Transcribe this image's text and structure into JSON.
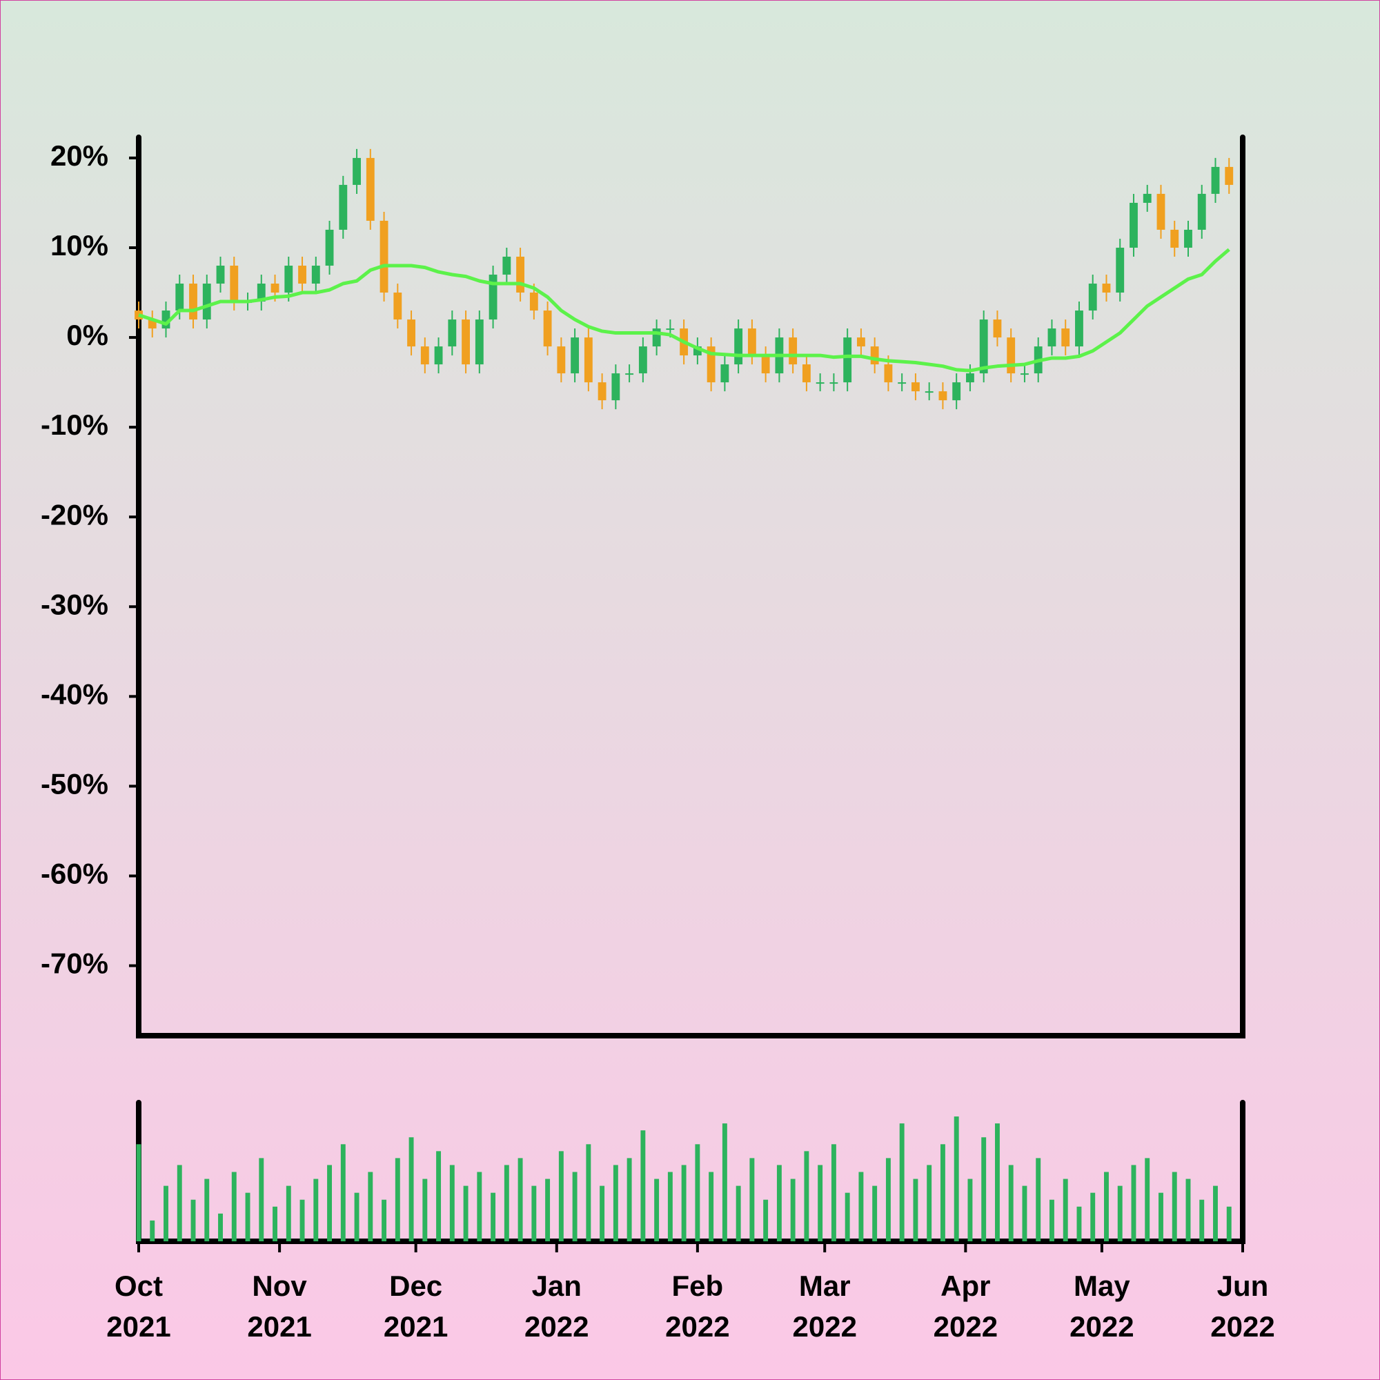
{
  "chart_data": [
    {
      "type": "candlestick",
      "x": [
        0,
        3,
        6,
        9,
        12,
        15,
        18,
        21,
        24,
        27,
        30,
        33,
        36,
        39,
        42,
        45,
        48,
        51,
        54,
        57,
        60,
        63,
        66,
        69,
        72,
        75,
        78,
        81,
        84,
        87,
        90,
        93,
        96,
        99,
        102,
        105,
        108,
        111,
        114,
        117,
        120,
        123,
        126,
        129,
        132,
        135,
        138,
        141,
        144,
        147,
        150,
        153,
        156,
        159,
        162,
        165,
        168,
        171,
        174,
        177,
        180,
        183,
        186,
        189,
        192,
        195,
        198,
        201,
        204,
        207,
        210,
        213,
        216,
        219,
        222,
        225,
        228,
        231,
        234,
        237,
        240
      ],
      "open": [
        3,
        2,
        1,
        3,
        6,
        2,
        6,
        8,
        4,
        4,
        6,
        5,
        8,
        6,
        8,
        12,
        17,
        20,
        13,
        5,
        2,
        -1,
        -3,
        -1,
        2,
        -3,
        2,
        7,
        9,
        5,
        3,
        -1,
        -4,
        0,
        -5,
        -7,
        -4,
        -4,
        -1,
        1,
        1,
        -2,
        -1,
        -5,
        -3,
        1,
        -2,
        -4,
        0,
        -3,
        -5,
        -5,
        -5,
        0,
        -1,
        -3,
        -5,
        -5,
        -6,
        -6,
        -7,
        -5,
        -4,
        2,
        0,
        -4,
        -4,
        -1,
        1,
        -1,
        3,
        6,
        5,
        10,
        15,
        16,
        12,
        10,
        12,
        16,
        19
      ],
      "high": [
        4,
        3,
        4,
        7,
        7,
        7,
        9,
        9,
        5,
        7,
        7,
        9,
        9,
        9,
        13,
        18,
        21,
        21,
        14,
        6,
        3,
        0,
        0,
        3,
        3,
        3,
        8,
        10,
        10,
        6,
        4,
        0,
        1,
        1,
        -4,
        -3,
        -3,
        0,
        2,
        2,
        2,
        0,
        0,
        -2,
        2,
        2,
        -1,
        1,
        1,
        -2,
        -4,
        -4,
        1,
        1,
        0,
        -2,
        -4,
        -4,
        -5,
        -5,
        -4,
        -3,
        3,
        3,
        1,
        -3,
        0,
        2,
        2,
        4,
        7,
        7,
        11,
        16,
        17,
        17,
        13,
        13,
        17,
        20,
        20
      ],
      "low": [
        1,
        0,
        0,
        2,
        1,
        1,
        5,
        3,
        3,
        3,
        4,
        4,
        5,
        5,
        7,
        11,
        16,
        12,
        4,
        1,
        -2,
        -4,
        -4,
        -2,
        -4,
        -4,
        1,
        6,
        4,
        2,
        -2,
        -5,
        -5,
        -6,
        -8,
        -8,
        -5,
        -5,
        -2,
        0,
        -3,
        -3,
        -6,
        -6,
        -4,
        -3,
        -5,
        -5,
        -4,
        -6,
        -6,
        -6,
        -6,
        -2,
        -4,
        -6,
        -6,
        -7,
        -7,
        -8,
        -8,
        -6,
        -5,
        -1,
        -5,
        -5,
        -5,
        -2,
        -2,
        -2,
        2,
        4,
        4,
        9,
        14,
        11,
        9,
        9,
        11,
        15,
        16
      ],
      "close": [
        2,
        1,
        3,
        6,
        2,
        6,
        8,
        4,
        4,
        6,
        5,
        8,
        6,
        8,
        12,
        17,
        20,
        13,
        5,
        2,
        -1,
        -3,
        -1,
        2,
        -3,
        2,
        7,
        9,
        5,
        3,
        -1,
        -4,
        0,
        -5,
        -7,
        -4,
        -4,
        -1,
        1,
        1,
        -2,
        -1,
        -5,
        -3,
        1,
        -2,
        -4,
        0,
        -3,
        -5,
        -5,
        -5,
        0,
        -1,
        -3,
        -5,
        -5,
        -6,
        -6,
        -7,
        -5,
        -4,
        2,
        0,
        -4,
        -4,
        -1,
        1,
        -1,
        3,
        6,
        5,
        10,
        15,
        16,
        12,
        10,
        12,
        16,
        19,
        17
      ],
      "up_color": "#2db35d",
      "down_color": "#f0a020",
      "series": [
        {
          "color": "#5cf24a",
          "values": [
            2.5,
            2,
            1.5,
            3,
            3,
            3.5,
            4,
            4,
            4,
            4.2,
            4.5,
            4.6,
            5,
            5,
            5.3,
            6,
            6.3,
            7.5,
            8,
            8,
            8,
            7.8,
            7.3,
            7,
            6.8,
            6.3,
            6,
            6,
            6,
            5.5,
            4.5,
            3,
            2,
            1.2,
            0.7,
            0.5,
            0.5,
            0.5,
            0.5,
            0.3,
            -0.5,
            -1.2,
            -1.8,
            -1.9,
            -2,
            -2,
            -2,
            -2,
            -2,
            -2,
            -2,
            -2.2,
            -2.1,
            -2.1,
            -2.4,
            -2.6,
            -2.7,
            -2.8,
            -3,
            -3.2,
            -3.6,
            -3.7,
            -3.4,
            -3.2,
            -3.1,
            -3,
            -2.6,
            -2.3,
            -2.3,
            -2.1,
            -1.5,
            -0.5,
            0.5,
            2,
            3.5,
            4.5,
            5.5,
            6.5,
            7,
            8.5,
            9.8
          ]
        }
      ],
      "xlim": [
        0,
        243
      ],
      "ylim": [
        -77.8,
        22.3
      ],
      "yticks": [
        {
          "value": 20,
          "label": "20%"
        },
        {
          "value": 10,
          "label": "10%"
        },
        {
          "value": 0,
          "label": "0%"
        },
        {
          "value": -10,
          "label": "-10%"
        },
        {
          "value": -20,
          "label": "-20%"
        },
        {
          "value": -30,
          "label": "-30%"
        },
        {
          "value": -40,
          "label": "-40%"
        },
        {
          "value": -50,
          "label": "-50%"
        },
        {
          "value": -60,
          "label": "-60%"
        },
        {
          "value": -70,
          "label": "-70%"
        }
      ]
    },
    {
      "type": "bar",
      "x": [
        0,
        3,
        6,
        9,
        12,
        15,
        18,
        21,
        24,
        27,
        30,
        33,
        36,
        39,
        42,
        45,
        48,
        51,
        54,
        57,
        60,
        63,
        66,
        69,
        72,
        75,
        78,
        81,
        84,
        87,
        90,
        93,
        96,
        99,
        102,
        105,
        108,
        111,
        114,
        117,
        120,
        123,
        126,
        129,
        132,
        135,
        138,
        141,
        144,
        147,
        150,
        153,
        156,
        159,
        162,
        165,
        168,
        171,
        174,
        177,
        180,
        183,
        186,
        189,
        192,
        195,
        198,
        201,
        204,
        207,
        210,
        213,
        216,
        219,
        222,
        225,
        228,
        231,
        234,
        237,
        240
      ],
      "values": [
        70,
        15,
        40,
        55,
        30,
        45,
        20,
        50,
        35,
        60,
        25,
        40,
        30,
        45,
        55,
        70,
        35,
        50,
        30,
        60,
        75,
        45,
        65,
        55,
        40,
        50,
        35,
        55,
        60,
        40,
        45,
        65,
        50,
        70,
        40,
        55,
        60,
        80,
        45,
        50,
        55,
        70,
        50,
        85,
        40,
        60,
        30,
        55,
        45,
        65,
        55,
        70,
        35,
        50,
        40,
        60,
        85,
        45,
        55,
        70,
        90,
        45,
        75,
        85,
        55,
        40,
        60,
        30,
        45,
        25,
        35,
        50,
        40,
        55,
        60,
        35,
        50,
        45,
        30,
        40,
        25
      ],
      "color": "#2db35d",
      "xlim": [
        0,
        243
      ],
      "ylim": [
        0,
        100
      ],
      "xticks": [
        {
          "value": 0,
          "label": "Oct 2021"
        },
        {
          "value": 31,
          "label": "Nov 2021"
        },
        {
          "value": 61,
          "label": "Dec 2021"
        },
        {
          "value": 92,
          "label": "Jan 2022"
        },
        {
          "value": 123,
          "label": "Feb 2022"
        },
        {
          "value": 151,
          "label": "Mar 2022"
        },
        {
          "value": 182,
          "label": "Apr 2022"
        },
        {
          "value": 212,
          "label": "May 2022"
        },
        {
          "value": 243,
          "label": "Jun 2022"
        }
      ]
    }
  ]
}
